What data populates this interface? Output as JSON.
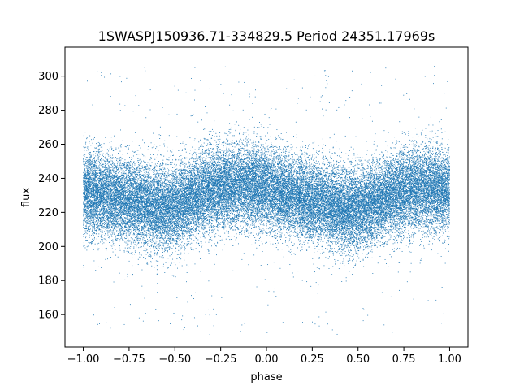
{
  "chart_data": {
    "type": "scatter",
    "title": "1SWASPJ150936.71-334829.5 Period 24351.17969s",
    "xlabel": "phase",
    "ylabel": "flux",
    "xlim": [
      -1.1,
      1.1
    ],
    "ylim": [
      141,
      317
    ],
    "x_ticks": [
      -1.0,
      -0.75,
      -0.5,
      -0.25,
      0.0,
      0.25,
      0.5,
      0.75,
      1.0
    ],
    "x_tick_labels": [
      "−1.00",
      "−0.75",
      "−0.50",
      "−0.25",
      "0.00",
      "0.25",
      "0.50",
      "0.75",
      "1.00"
    ],
    "y_ticks": [
      160,
      180,
      200,
      220,
      240,
      260,
      280,
      300
    ],
    "y_tick_labels": [
      "160",
      "180",
      "200",
      "220",
      "240",
      "260",
      "280",
      "300"
    ],
    "grid": false,
    "legend": "none",
    "point_color": "#1f77b4",
    "series": [
      {
        "x": [
          -1.0,
          -0.9,
          -0.8,
          -0.7,
          -0.6,
          -0.5,
          -0.4,
          -0.3,
          -0.2,
          -0.1,
          0.0,
          0.1,
          0.2,
          0.3,
          0.4,
          0.5,
          0.6,
          0.7,
          0.8,
          0.9,
          1.0
        ],
        "values": [
          233,
          230,
          228,
          226,
          222,
          223,
          228,
          233,
          236,
          236,
          234,
          231,
          228,
          226,
          222,
          222,
          226,
          231,
          234,
          234,
          233
        ],
        "scatter_std": 12,
        "point_count": 40000,
        "x_range": [
          -1.0,
          1.0
        ],
        "y_range": [
          148,
          307
        ]
      }
    ]
  }
}
